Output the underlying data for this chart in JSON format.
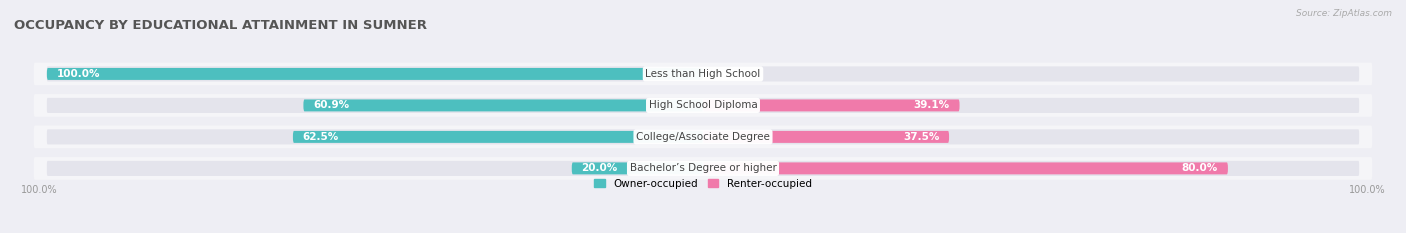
{
  "title": "OCCUPANCY BY EDUCATIONAL ATTAINMENT IN SUMNER",
  "source": "Source: ZipAtlas.com",
  "categories": [
    "Less than High School",
    "High School Diploma",
    "College/Associate Degree",
    "Bachelor’s Degree or higher"
  ],
  "owner_values": [
    100.0,
    60.9,
    62.5,
    20.0
  ],
  "renter_values": [
    0.0,
    39.1,
    37.5,
    80.0
  ],
  "owner_color": "#4dbfbf",
  "renter_color": "#f07aaa",
  "background_color": "#eeeef4",
  "row_bg_color": "#e4e4ec",
  "row_bg_light": "#f5f5f8",
  "title_fontsize": 9.5,
  "label_fontsize": 7.5,
  "axis_label_fontsize": 7,
  "legend_fontsize": 7.5,
  "value_fontsize": 7.5
}
